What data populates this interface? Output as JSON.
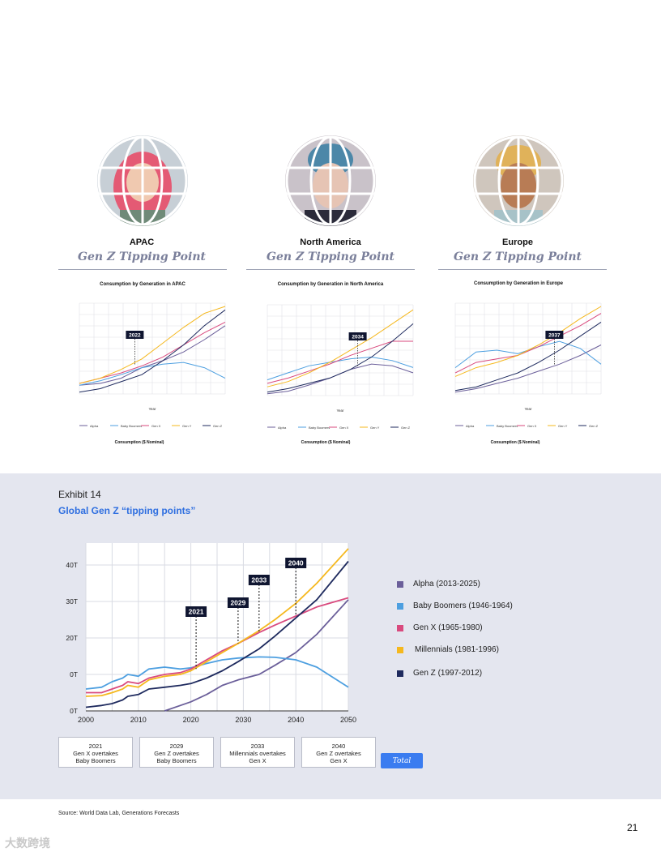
{
  "regions": [
    {
      "name": "APAC",
      "subtitle": "Gen Z Tipping Point",
      "chart_title": "Consumption by Generation in APAC",
      "chart_footer": "Consumption ($ Nominal)",
      "tipping_year": "2022"
    },
    {
      "name": "North America",
      "subtitle": "Gen Z Tipping Point",
      "chart_title": "Consumption by Generation in North America",
      "chart_footer": "Consumption ($ Nominal)",
      "tipping_year": "2034"
    },
    {
      "name": "Europe",
      "subtitle": "Gen Z Tipping Point",
      "chart_title": "Consumption by Generation in Europe",
      "chart_footer": "Consumption ($ Nominal)",
      "tipping_year": "2037"
    }
  ],
  "mini_legend": [
    "Alpha",
    "Baby Boomers",
    "Gen X",
    "Gen Y",
    "Gen Z"
  ],
  "mini_xlabel": "Year",
  "exhibit": {
    "label": "Exhibit 14",
    "title": "Global Gen Z “tipping points”"
  },
  "legend": [
    {
      "label": "Alpha (2013-2025)",
      "color": "#6b5f9a"
    },
    {
      "label": "Baby Boomers  (1946-1964)",
      "color": "#4d9fe0"
    },
    {
      "label": "Gen X (1965-1980)",
      "color": "#d94a7e"
    },
    {
      "label": "Millennials (1981-1996)",
      "color": "#f5b81e"
    },
    {
      "label": "Gen Z (1997-2012)",
      "color": "#1e2a5e"
    }
  ],
  "milestones": [
    {
      "year": "2021",
      "line1": "Gen X overtakes",
      "line2": "Baby Boomers"
    },
    {
      "year": "2029",
      "line1": "Gen Z overtakes",
      "line2": "Baby Boomers"
    },
    {
      "year": "2033",
      "line1": "Millennials overtakes",
      "line2": "Gen X"
    },
    {
      "year": "2040",
      "line1": "Gen Z overtakes",
      "line2": "Gen X"
    }
  ],
  "total_button": "Total",
  "source": "Source: World Data Lab, Generations Forecasts",
  "page_number": "21",
  "watermark": "大数跨境",
  "chart_data": {
    "type": "line",
    "x": [
      2000,
      2003,
      2005,
      2007,
      2008,
      2010,
      2012,
      2015,
      2018,
      2020,
      2023,
      2026,
      2029,
      2033,
      2036,
      2040,
      2044,
      2050
    ],
    "x_ticks": [
      "2000",
      "2010",
      "2020",
      "2030",
      "2040",
      "2050"
    ],
    "y_ticks": [
      "0T",
      "0T",
      "20T",
      "30T",
      "40T"
    ],
    "callouts": [
      {
        "label": "2021",
        "x": 2021,
        "y": 11.5
      },
      {
        "label": "2029",
        "x": 2029,
        "y": 18.5
      },
      {
        "label": "2033",
        "x": 2033,
        "y": 21.5
      },
      {
        "label": "2040",
        "x": 2040,
        "y": 26
      }
    ],
    "series": [
      {
        "name": "Alpha (2013-2025)",
        "color": "#6b5f9a",
        "values": [
          null,
          null,
          null,
          null,
          null,
          null,
          null,
          0,
          1.5,
          2.5,
          4.5,
          7,
          8.5,
          10,
          12.5,
          16,
          21,
          30.5
        ]
      },
      {
        "name": "Baby Boomers  (1946-1964)",
        "color": "#4d9fe0",
        "values": [
          6,
          6.5,
          8,
          9,
          10,
          9.5,
          11.5,
          12,
          11.5,
          11.8,
          13,
          14,
          14.5,
          14.8,
          14.7,
          14,
          12,
          6.5
        ]
      },
      {
        "name": "Gen X (1965-1980)",
        "color": "#d94a7e",
        "values": [
          5,
          5,
          6,
          7,
          8,
          7.5,
          9,
          10,
          10.5,
          11.5,
          14,
          16.5,
          18.5,
          21.5,
          23.5,
          26,
          28.5,
          31
        ]
      },
      {
        "name": "Millennials (1981-1996)",
        "color": "#f5b81e",
        "values": [
          4,
          4.2,
          5,
          6,
          7,
          6.5,
          8.5,
          9.5,
          10,
          11,
          13.5,
          16,
          18.5,
          22,
          25,
          29.5,
          35,
          44.5
        ]
      },
      {
        "name": "Gen Z (1997-2012)",
        "color": "#1e2a5e",
        "values": [
          1,
          1.5,
          2,
          3,
          4,
          4.5,
          6,
          6.5,
          7,
          7.5,
          9,
          11,
          13.5,
          17,
          20.5,
          25.5,
          30.5,
          41
        ]
      }
    ]
  }
}
